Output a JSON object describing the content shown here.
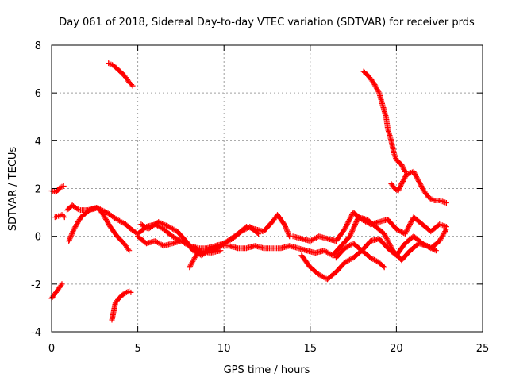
{
  "chart_data": {
    "type": "scatter",
    "title": "Day 061 of 2018, Sidereal Day-to-day VTEC variation (SDTVAR) for receiver prds",
    "xlabel": "GPS time / hours",
    "ylabel": "SDTVAR / TECUs",
    "xlim": [
      0,
      25
    ],
    "ylim": [
      -4,
      8
    ],
    "xticks": [
      0,
      5,
      10,
      15,
      20,
      25
    ],
    "xtick_labels": [
      "0",
      "5",
      "10",
      "15",
      "20",
      "25"
    ],
    "yticks": [
      -4,
      -2,
      0,
      2,
      4,
      6,
      8
    ],
    "ytick_labels": [
      "-4",
      "-2",
      "0",
      "2",
      "4",
      "6",
      "8"
    ],
    "grid": true,
    "marker": "+",
    "color": "#ff0000",
    "series": [
      {
        "name": "s1",
        "x": [
          0,
          0.25,
          0.5,
          0.7
        ],
        "y": [
          1.9,
          1.85,
          2.05,
          2.1
        ]
      },
      {
        "name": "s2",
        "x": [
          0,
          0.3,
          0.6
        ],
        "y": [
          -2.6,
          -2.3,
          -2.0
        ]
      },
      {
        "name": "s3",
        "x": [
          0.2,
          0.4,
          0.6,
          0.75
        ],
        "y": [
          0.8,
          0.85,
          0.9,
          0.8
        ]
      },
      {
        "name": "s4",
        "x": [
          0.9,
          1.2,
          1.6,
          2.1,
          2.6,
          3.2,
          3.8,
          4.3,
          4.6,
          5.0,
          5.5,
          6.0,
          6.5,
          7.0,
          7.5,
          8.0,
          8.6,
          9.2,
          9.8
        ],
        "y": [
          1.1,
          1.3,
          1.1,
          1.1,
          1.2,
          1.0,
          0.7,
          0.5,
          0.3,
          0.1,
          0.4,
          0.5,
          0.3,
          0.0,
          -0.2,
          -0.4,
          -0.6,
          -0.7,
          -0.6
        ]
      },
      {
        "name": "s5",
        "x": [
          1.0,
          1.3,
          1.7,
          2.2,
          2.7,
          3.0,
          3.4,
          3.8,
          4.2,
          4.5
        ],
        "y": [
          -0.2,
          0.3,
          0.8,
          1.1,
          1.2,
          0.9,
          0.4,
          0.0,
          -0.3,
          -0.6
        ]
      },
      {
        "name": "s6",
        "x": [
          3.3,
          3.6,
          3.9,
          4.2,
          4.5,
          4.7
        ],
        "y": [
          7.25,
          7.15,
          6.95,
          6.75,
          6.45,
          6.3
        ]
      },
      {
        "name": "s7",
        "x": [
          3.5,
          3.7,
          3.9,
          4.2,
          4.5,
          4.6
        ],
        "y": [
          -3.5,
          -2.8,
          -2.6,
          -2.4,
          -2.3,
          -2.35
        ]
      },
      {
        "name": "s8",
        "x": [
          5.0,
          5.5,
          6.0,
          6.5,
          7.0,
          7.5,
          8.0,
          8.5,
          9.0,
          9.5,
          10.0,
          10.5,
          11.0,
          11.5,
          12.0
        ],
        "y": [
          0.0,
          -0.3,
          -0.2,
          -0.4,
          -0.3,
          -0.2,
          -0.4,
          -0.5,
          -0.5,
          -0.4,
          -0.3,
          -0.1,
          0.2,
          0.4,
          0.1
        ]
      },
      {
        "name": "s9",
        "x": [
          5.2,
          5.6,
          6.2,
          6.8,
          7.3,
          7.8,
          8.2,
          8.7,
          9.1,
          9.6,
          10.2,
          10.8,
          11.3,
          11.8,
          12.3,
          12.8,
          13.1,
          13.5,
          13.8
        ],
        "y": [
          0.5,
          0.3,
          0.6,
          0.4,
          0.2,
          -0.2,
          -0.6,
          -0.8,
          -0.6,
          -0.5,
          -0.2,
          0.1,
          0.4,
          0.3,
          0.2,
          0.6,
          0.9,
          0.5,
          0.0
        ]
      },
      {
        "name": "s10",
        "x": [
          8.0,
          8.3,
          8.6
        ],
        "y": [
          -1.3,
          -0.9,
          -0.6
        ]
      },
      {
        "name": "s11",
        "x": [
          9.8,
          10.3,
          10.8,
          11.3,
          11.8,
          12.3,
          12.8,
          13.3,
          13.8,
          14.3,
          14.8,
          15.3,
          15.8,
          16.3,
          16.8,
          17.3,
          17.8,
          18.3,
          18.8,
          19.3,
          19.8,
          20.3,
          20.8,
          21.3,
          21.8,
          22.3
        ],
        "y": [
          -0.4,
          -0.4,
          -0.5,
          -0.5,
          -0.4,
          -0.5,
          -0.5,
          -0.5,
          -0.4,
          -0.5,
          -0.6,
          -0.7,
          -0.6,
          -0.8,
          -0.4,
          0.0,
          0.8,
          0.7,
          0.4,
          0.1,
          -0.6,
          -1.0,
          -0.6,
          -0.3,
          -0.4,
          -0.6
        ]
      },
      {
        "name": "s12",
        "x": [
          14.5,
          15.0,
          15.5,
          16.0,
          16.5,
          17.0,
          17.5,
          18.0,
          18.5,
          19.0,
          19.5,
          20.0,
          20.5,
          21.0,
          21.5,
          22.0,
          22.5,
          22.9
        ],
        "y": [
          -0.8,
          -1.3,
          -1.6,
          -1.8,
          -1.5,
          -1.1,
          -0.9,
          -0.6,
          -0.2,
          -0.1,
          -0.5,
          -0.8,
          -0.3,
          0.0,
          -0.3,
          -0.5,
          -0.2,
          0.3
        ]
      },
      {
        "name": "s13",
        "x": [
          14.0,
          14.5,
          15.0,
          15.5,
          16.0,
          16.5,
          17.0,
          17.5,
          18.0,
          18.5,
          19.0,
          19.5,
          20.0,
          20.5,
          21.0,
          21.5,
          22.0,
          22.5,
          22.9
        ],
        "y": [
          0.0,
          -0.1,
          -0.2,
          0.0,
          -0.1,
          -0.2,
          0.3,
          1.0,
          0.7,
          0.5,
          0.6,
          0.7,
          0.3,
          0.1,
          0.8,
          0.5,
          0.2,
          0.5,
          0.4
        ]
      },
      {
        "name": "s14",
        "x": [
          16.5,
          17.0,
          17.5,
          18.0,
          18.5,
          19.0,
          19.3
        ],
        "y": [
          -0.9,
          -0.5,
          -0.3,
          -0.6,
          -0.9,
          -1.1,
          -1.3
        ]
      },
      {
        "name": "s15",
        "x": [
          18.1,
          18.4,
          18.7,
          19.0,
          19.2,
          19.4,
          19.5,
          19.7,
          19.85,
          20.0,
          20.3,
          20.5
        ],
        "y": [
          6.9,
          6.7,
          6.4,
          6.0,
          5.5,
          5.0,
          4.5,
          4.0,
          3.5,
          3.2,
          3.0,
          2.7
        ]
      },
      {
        "name": "s16",
        "x": [
          19.7,
          19.9,
          20.1,
          20.3,
          20.6,
          21.0,
          21.3,
          21.6,
          21.9,
          22.2,
          22.5,
          22.9
        ],
        "y": [
          2.2,
          2.0,
          1.9,
          2.2,
          2.6,
          2.7,
          2.3,
          1.9,
          1.6,
          1.5,
          1.5,
          1.4
        ]
      }
    ]
  }
}
